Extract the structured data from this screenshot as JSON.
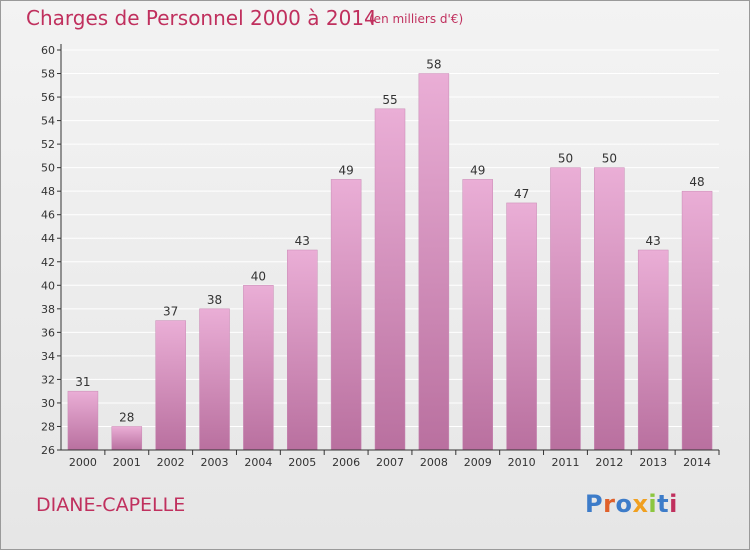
{
  "header": {
    "title": "Charges de Personnel 2000 à 2014",
    "subtitle": "(en milliers d'€)"
  },
  "footer": {
    "location": "DIANE-CAPELLE",
    "logo_text": "Proxiti",
    "logo_colors": [
      "#3d7cc9",
      "#e0602a",
      "#3d7cc9",
      "#f0a020",
      "#8cc63f",
      "#3d7cc9",
      "#c0305e"
    ]
  },
  "colors": {
    "title": "#c0305e",
    "bar_top": "#eaaed6",
    "bar_bottom": "#b9709f",
    "axis": "#333333",
    "grid": "#ffffff"
  },
  "chart_data": {
    "type": "bar",
    "categories": [
      "2000",
      "2001",
      "2002",
      "2003",
      "2004",
      "2005",
      "2006",
      "2007",
      "2008",
      "2009",
      "2010",
      "2011",
      "2012",
      "2013",
      "2014"
    ],
    "values": [
      31,
      28,
      37,
      38,
      40,
      43,
      49,
      55,
      58,
      49,
      47,
      50,
      50,
      43,
      48
    ],
    "ylim": [
      26,
      60
    ],
    "ytick_step": 2,
    "grid": true,
    "data_labels": true
  }
}
